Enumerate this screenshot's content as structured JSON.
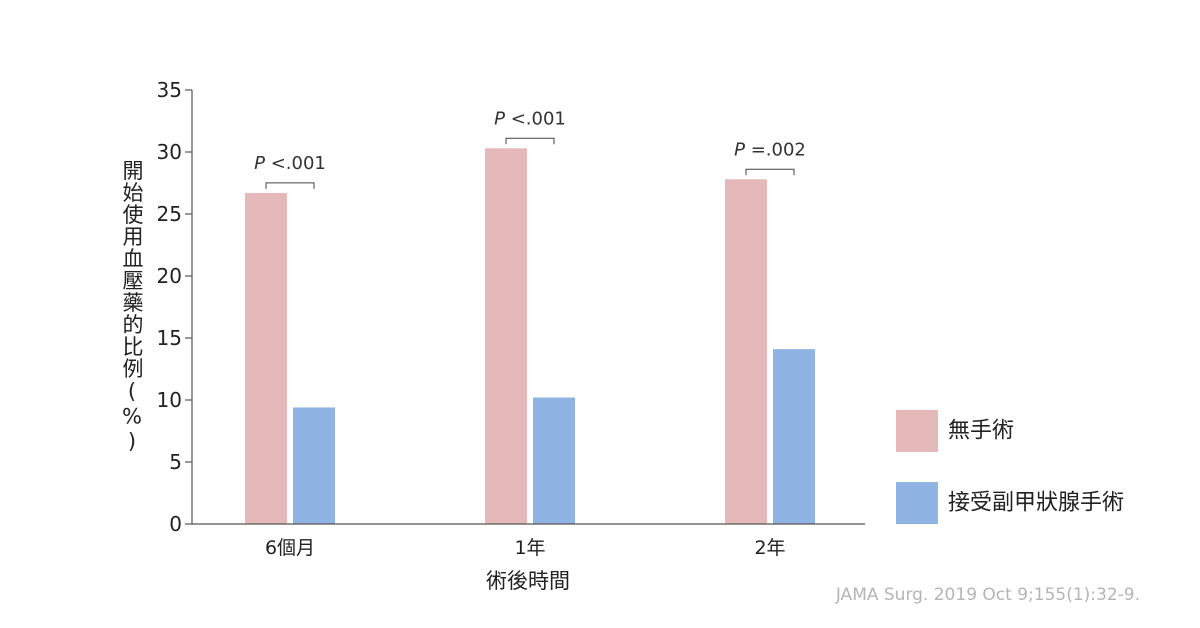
{
  "chart_data": {
    "type": "bar",
    "ylabel": "開始使用血壓藥的比例(%)",
    "xlabel": "術後時間",
    "ylim": [
      0,
      35
    ],
    "yticks": [
      0,
      5,
      10,
      15,
      20,
      25,
      30,
      35
    ],
    "grid": false,
    "legend_position": "right",
    "categories": [
      "6個月",
      "1年",
      "2年"
    ],
    "series": [
      {
        "name": "無手術",
        "color": "#e5b9b9",
        "values": [
          26.7,
          30.3,
          27.8
        ]
      },
      {
        "name": "接受副甲狀腺手術",
        "color": "#8fb4e3",
        "values": [
          9.4,
          10.2,
          14.1
        ]
      }
    ],
    "annotations": [
      {
        "category": "6個月",
        "prefix": "P",
        "text": " <.001"
      },
      {
        "category": "1年",
        "prefix": "P",
        "text": " <.001"
      },
      {
        "category": "2年",
        "prefix": "P",
        "text": " =.002"
      }
    ]
  },
  "source": "JAMA Surg. 2019 Oct 9;155(1):32-9."
}
